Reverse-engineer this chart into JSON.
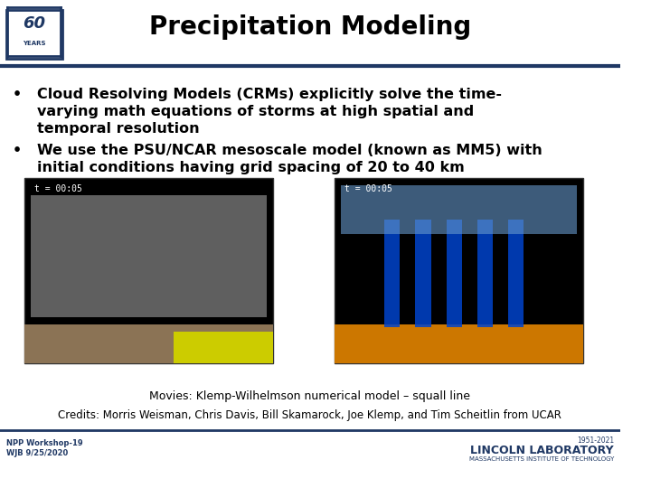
{
  "title": "Precipitation Modeling",
  "bullet1_line1": "Cloud Resolving Models (CRMs) explicitly solve the time-",
  "bullet1_line2": "varying math equations of storms at high spatial and",
  "bullet1_line3": "temporal resolution",
  "bullet2_line1": "We use the PSU/NCAR mesoscale model (known as MM5) with",
  "bullet2_line2": "initial conditions having grid spacing of 20 to 40 km",
  "caption": "Movies: Klemp-Wilhelmson numerical model – squall line",
  "credits": "Credits: Morris Weisman, Chris Davis, Bill Skamarock, Joe Klemp, and Tim Scheitlin from UCAR",
  "footer_left_line1": "NPP Workshop-19",
  "footer_left_line2": "WJB 9/25/2020",
  "bg_color": "#ffffff",
  "title_color": "#000000",
  "header_line_color": "#1f3864",
  "text_color": "#000000",
  "footer_color": "#1f3864",
  "image_bg": "#000000",
  "logo_border_color": "#1f3864"
}
